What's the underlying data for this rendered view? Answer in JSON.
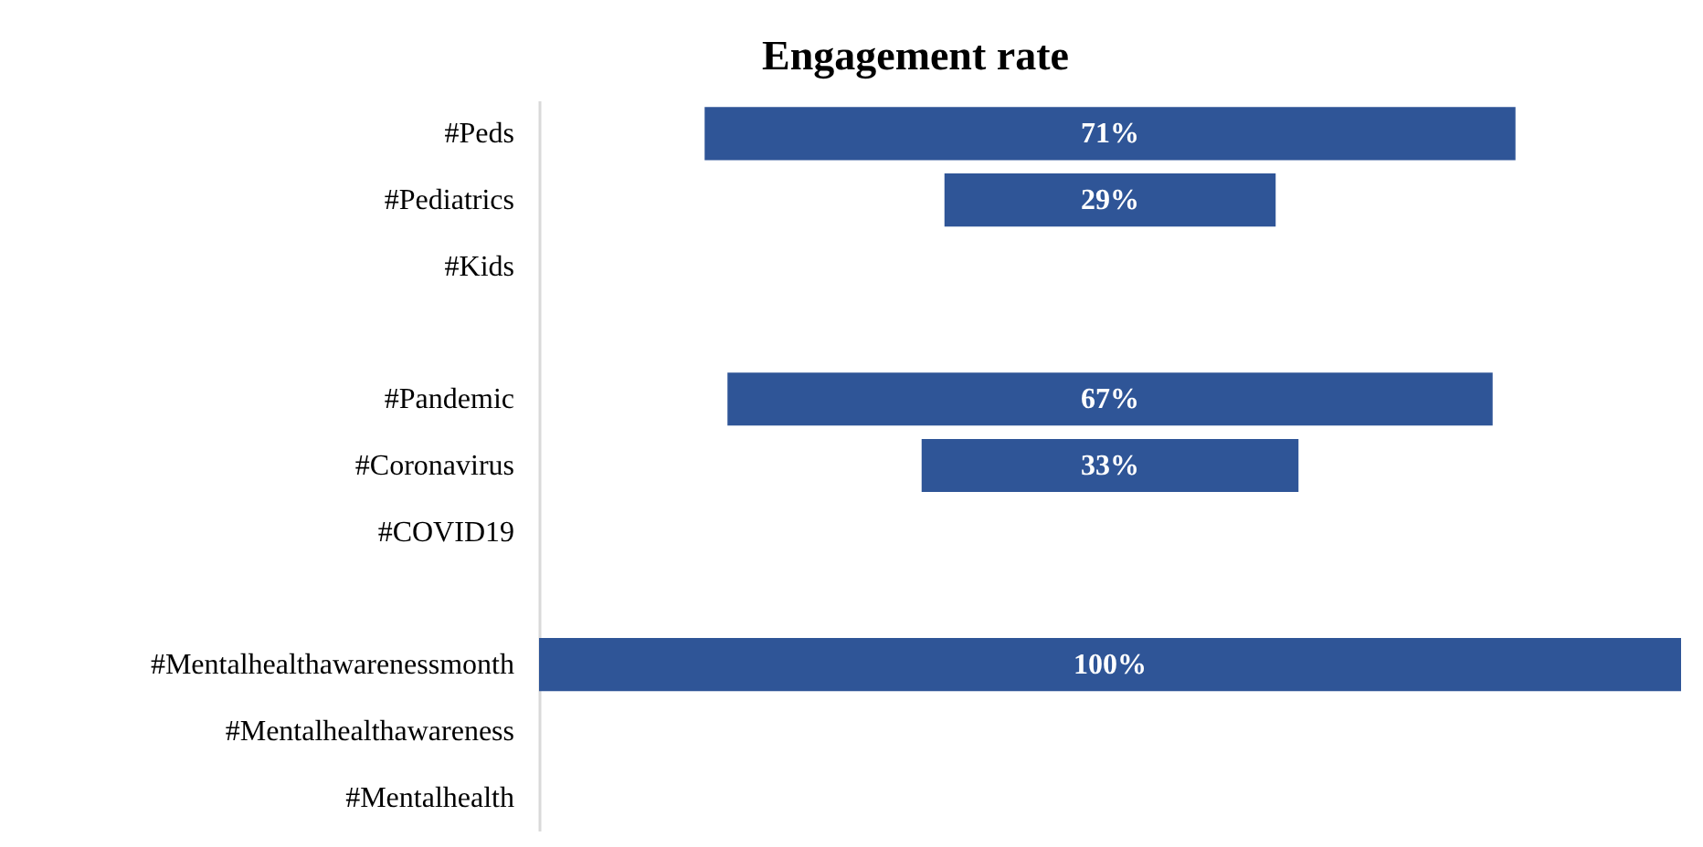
{
  "chart_data": {
    "type": "other",
    "title": "Engagement rate",
    "categories": [
      "#Peds",
      "#Pediatrics",
      "#Kids",
      null,
      "#Pandemic",
      "#Coronavirus",
      "#COVID19",
      null,
      "#Mentalhealthawarenessmonth",
      "#Mentalhealthawareness",
      "#Mentalhealth"
    ],
    "values": [
      71,
      29,
      null,
      null,
      67,
      33,
      null,
      null,
      100,
      null,
      null
    ],
    "value_labels": [
      "71%",
      "29%",
      null,
      null,
      "67%",
      "33%",
      null,
      null,
      "100%",
      null,
      null
    ],
    "color": "#2f5597"
  }
}
